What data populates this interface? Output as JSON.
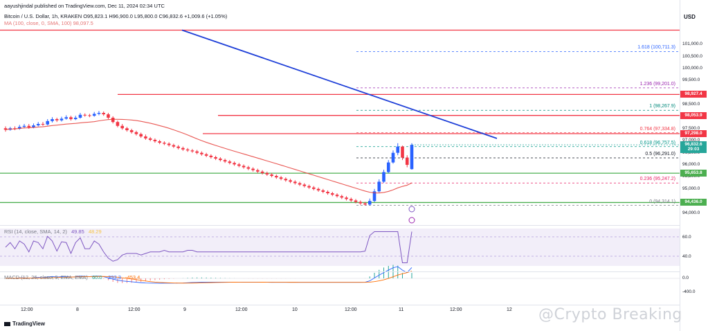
{
  "header": {
    "top_line": "aayushjindal published on TradingView.com, Dec 11, 2024 02:34 UTC",
    "symbol_line": "Bitcoin / U.S. Dollar, 1h, KRAKEN  O95,823.1  H96,900.0  L95,800.0  C96,832.6  +1,009.6 (+1.05%)",
    "ma_line": "MA (100, close, 0, SMA, 100)  98,097.5",
    "currency": "USD"
  },
  "branding": {
    "footer": "TradingView",
    "watermark": "@Crypto Breaking"
  },
  "rsi": {
    "legend": "RSI (14, close, SMA, 14, 2)",
    "value1": "49.85",
    "value2": "48.29",
    "ticks": [
      "60.0",
      "40.0"
    ]
  },
  "macd": {
    "legend": "MACD (12, 26, close, 9, EMA, EMA)",
    "value1": "60.0",
    "value2": "-393.3",
    "value3": "-453.4",
    "ticks": [
      "0.0",
      "-400.0"
    ]
  },
  "price_axis": {
    "ticks": [
      "101,000.0",
      "100,500.0",
      "100,000.0",
      "99,500.0",
      "98,500.0",
      "97,500.0",
      "97,000.0",
      "96,500.0",
      "96,000.0",
      "95,500.0",
      "95,000.0",
      "94,000.0"
    ],
    "badges": [
      {
        "label": "98,927.4",
        "color": "#f23645",
        "y": 98927.4
      },
      {
        "label": "98,053.9",
        "color": "#f23645",
        "y": 98053.9
      },
      {
        "label": "97,298.0",
        "color": "#f23645",
        "y": 97298.0
      },
      {
        "label": "96,832.6",
        "color": "#26a69a",
        "y": 96832.6
      },
      {
        "label": "29:03",
        "color": "#26a69a",
        "y": 96640
      },
      {
        "label": "95,653.8",
        "color": "#4caf50",
        "y": 95653.8
      },
      {
        "label": "94,436.0",
        "color": "#4caf50",
        "y": 94436.0
      }
    ]
  },
  "time_axis": [
    "12:00",
    "8",
    "12:00",
    "9",
    "12:00",
    "10",
    "12:00",
    "11",
    "12:00",
    "12"
  ],
  "fib_levels": [
    {
      "label": "1.618 (100,711.3)",
      "value": 100711.3,
      "color": "#2962ff"
    },
    {
      "label": "1.236 (99,201.0)",
      "value": 99201.0,
      "color": "#9c27b0"
    },
    {
      "label": "1 (98,267.9)",
      "value": 98267.9,
      "color": "#00897b"
    },
    {
      "label": "0.764 (97,334.8)",
      "value": 97334.8,
      "color": "#f23645"
    },
    {
      "label": "0.618 (96,757.5)",
      "value": 96757.5,
      "color": "#009688"
    },
    {
      "label": "0.5 (96,291.0)",
      "value": 96291.0,
      "color": "#131722"
    },
    {
      "label": "0.236 (95,247.2)",
      "value": 95247.2,
      "color": "#e91e63"
    },
    {
      "label": "0 (94,314.1)",
      "value": 94314.1,
      "color": "#787b86"
    }
  ],
  "chart_data": {
    "type": "candlestick",
    "title": "Bitcoin / U.S. Dollar, 1h, KRAKEN",
    "ylabel": "USD",
    "ylim": [
      93700,
      101700
    ],
    "resistance_levels": [
      98927.4,
      98053.9,
      97298.0
    ],
    "support_levels": [
      95653.8,
      94436.0
    ],
    "trend_line": {
      "from": [
        263,
        101600
      ],
      "to": [
        718,
        97100
      ]
    },
    "candles": [
      [
        97520,
        97460,
        97600,
        97380
      ],
      [
        97460,
        97520,
        97580,
        97420
      ],
      [
        97520,
        97500,
        97600,
        97440
      ],
      [
        97500,
        97580,
        97660,
        97460
      ],
      [
        97580,
        97620,
        97700,
        97520
      ],
      [
        97620,
        97560,
        97700,
        97500
      ],
      [
        97560,
        97640,
        97720,
        97520
      ],
      [
        97640,
        97700,
        97780,
        97600
      ],
      [
        97700,
        97680,
        97780,
        97620
      ],
      [
        97680,
        97820,
        97900,
        97640
      ],
      [
        97820,
        97900,
        97980,
        97760
      ],
      [
        97900,
        97850,
        97960,
        97780
      ],
      [
        97850,
        97920,
        98000,
        97800
      ],
      [
        97920,
        97980,
        98060,
        97880
      ],
      [
        97980,
        97900,
        98040,
        97840
      ],
      [
        97900,
        97960,
        98040,
        97860
      ],
      [
        97960,
        98080,
        98160,
        97920
      ],
      [
        98080,
        98060,
        98140,
        98000
      ],
      [
        98060,
        98040,
        98120,
        97980
      ],
      [
        98040,
        98120,
        98200,
        98000
      ],
      [
        98120,
        98160,
        98240,
        98060
      ],
      [
        98160,
        98100,
        98220,
        98040
      ],
      [
        98100,
        97960,
        98160,
        97900
      ],
      [
        97960,
        97780,
        98020,
        97720
      ],
      [
        97780,
        97620,
        97840,
        97560
      ],
      [
        97620,
        97520,
        97700,
        97460
      ],
      [
        97520,
        97440,
        97580,
        97380
      ],
      [
        97440,
        97360,
        97500,
        97300
      ],
      [
        97360,
        97280,
        97420,
        97220
      ],
      [
        97280,
        97180,
        97340,
        97120
      ],
      [
        97180,
        97100,
        97260,
        97040
      ],
      [
        97100,
        97040,
        97160,
        96980
      ],
      [
        97040,
        96980,
        97100,
        96920
      ],
      [
        96980,
        96920,
        97040,
        96860
      ],
      [
        96920,
        96880,
        96980,
        96820
      ],
      [
        96880,
        96820,
        96940,
        96760
      ],
      [
        96820,
        96760,
        96880,
        96700
      ],
      [
        96760,
        96700,
        96820,
        96640
      ],
      [
        96700,
        96640,
        96760,
        96580
      ],
      [
        96640,
        96600,
        96700,
        96540
      ],
      [
        96600,
        96560,
        96660,
        96500
      ],
      [
        96560,
        96500,
        96620,
        96440
      ],
      [
        96500,
        96440,
        96560,
        96380
      ],
      [
        96440,
        96380,
        96500,
        96320
      ],
      [
        96380,
        96320,
        96440,
        96260
      ],
      [
        96320,
        96260,
        96380,
        96200
      ],
      [
        96260,
        96200,
        96320,
        96140
      ],
      [
        96200,
        96140,
        96260,
        96080
      ],
      [
        96140,
        96080,
        96200,
        96020
      ],
      [
        96080,
        96020,
        96140,
        95960
      ],
      [
        96020,
        95960,
        96080,
        95900
      ],
      [
        95960,
        95900,
        96020,
        95840
      ],
      [
        95900,
        95840,
        95960,
        95780
      ],
      [
        95840,
        95780,
        95900,
        95720
      ],
      [
        95780,
        95720,
        95840,
        95660
      ],
      [
        95720,
        95660,
        95780,
        95600
      ],
      [
        95660,
        95600,
        95720,
        95540
      ],
      [
        95600,
        95540,
        95660,
        95480
      ],
      [
        95540,
        95480,
        95600,
        95420
      ],
      [
        95480,
        95420,
        95540,
        95360
      ],
      [
        95420,
        95360,
        95480,
        95300
      ],
      [
        95360,
        95300,
        95420,
        95240
      ],
      [
        95300,
        95240,
        95360,
        95180
      ],
      [
        95240,
        95180,
        95300,
        95120
      ],
      [
        95180,
        95120,
        95240,
        95060
      ],
      [
        95120,
        95060,
        95180,
        95000
      ],
      [
        95060,
        95000,
        95120,
        94940
      ],
      [
        95000,
        94940,
        95060,
        94880
      ],
      [
        94940,
        94880,
        95000,
        94820
      ],
      [
        94880,
        94820,
        94940,
        94760
      ],
      [
        94820,
        94760,
        94880,
        94700
      ],
      [
        94760,
        94700,
        94820,
        94640
      ],
      [
        94700,
        94640,
        94760,
        94580
      ],
      [
        94640,
        94580,
        94700,
        94520
      ],
      [
        94580,
        94520,
        94640,
        94460
      ],
      [
        94520,
        94460,
        94580,
        94400
      ],
      [
        94460,
        94400,
        94520,
        94340
      ],
      [
        94400,
        94350,
        94460,
        94310
      ],
      [
        94350,
        94500,
        94600,
        94314
      ],
      [
        94500,
        94900,
        95000,
        94450
      ],
      [
        94900,
        95300,
        95400,
        94850
      ],
      [
        95300,
        95700,
        95800,
        95250
      ],
      [
        95700,
        96100,
        96200,
        95650
      ],
      [
        96100,
        96500,
        96600,
        96050
      ],
      [
        96500,
        96760,
        96900,
        96400
      ],
      [
        96760,
        96300,
        96800,
        96200
      ],
      [
        96300,
        96000,
        96400,
        95900
      ],
      [
        95823.1,
        96832.6,
        96900,
        95800
      ]
    ]
  }
}
